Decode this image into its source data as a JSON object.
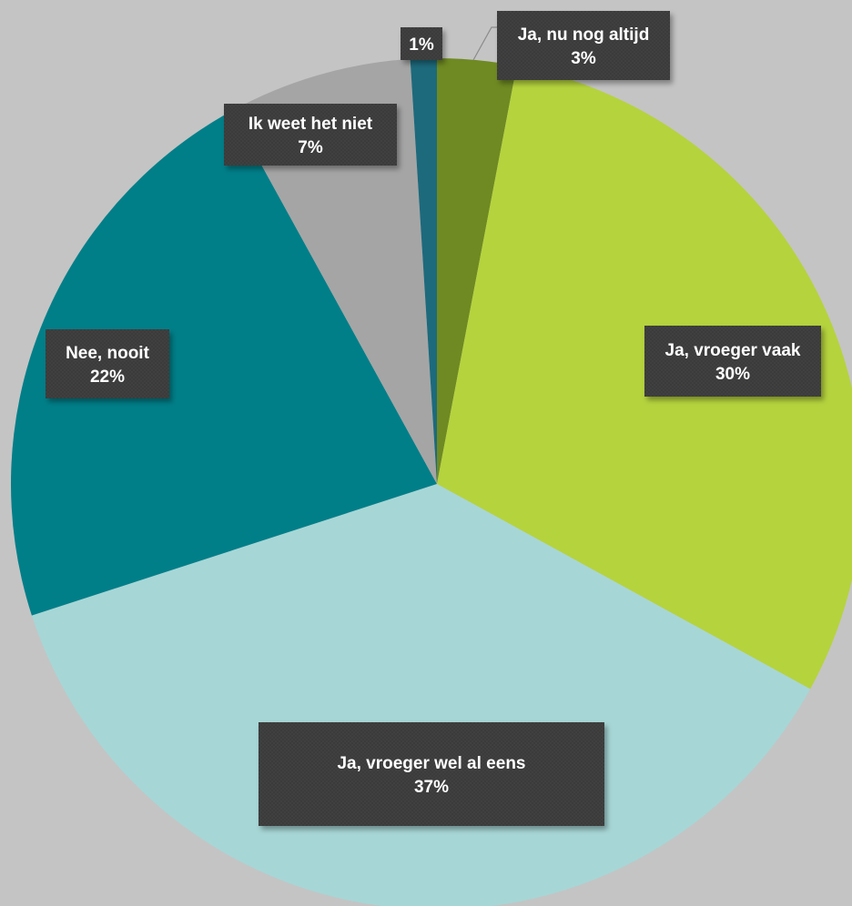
{
  "chart_data": {
    "type": "pie",
    "title": "",
    "slices": [
      {
        "label": "Ja, nu nog altijd",
        "value": 3,
        "value_label": "3%",
        "color": "#6f8a22"
      },
      {
        "label": "Ja, vroeger vaak",
        "value": 30,
        "value_label": "30%",
        "color": "#b5d33d"
      },
      {
        "label": "Ja, vroeger wel al eens",
        "value": 37,
        "value_label": "37%",
        "color": "#a7d6d6"
      },
      {
        "label": "Nee, nooit",
        "value": 22,
        "value_label": "22%",
        "color": "#007f89"
      },
      {
        "label": "Ik weet het niet",
        "value": 7,
        "value_label": "7%",
        "color": "#a5a5a5"
      },
      {
        "label": "",
        "value": 1,
        "value_label": "1%",
        "color": "#1d6a7c"
      }
    ],
    "legend": "none",
    "background": "#c4c4c4",
    "label_box_color": "#3b3b3b",
    "label_text_color": "#ffffff"
  }
}
